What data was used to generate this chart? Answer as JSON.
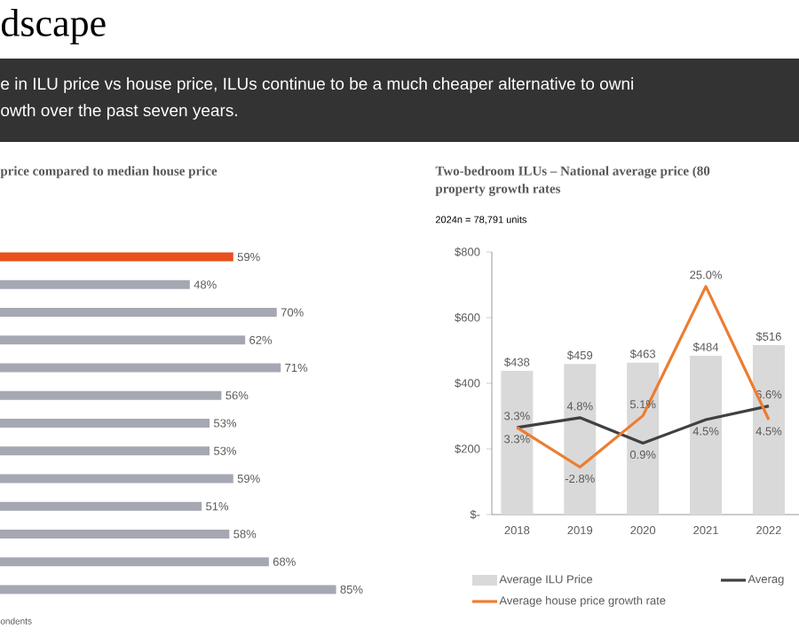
{
  "chart_data": [
    {
      "type": "other",
      "title": "dscape",
      "annotations": [
        "e in ILU price vs house price, ILUs continue to be a much cheaper alternative to owni",
        "owth over the past seven years."
      ]
    },
    {
      "type": "bar",
      "orientation": "horizontal",
      "title": "price compared to median house price",
      "categories": [
        null,
        null,
        null,
        null,
        null,
        null,
        null,
        null,
        null,
        null,
        null,
        null,
        null
      ],
      "values": [
        59,
        48,
        70,
        62,
        71,
        56,
        53,
        53,
        59,
        51,
        58,
        68,
        85
      ],
      "colors": [
        "#e8501e",
        "#a5a8b3",
        "#a5a8b3",
        "#a5a8b3",
        "#a5a8b3",
        "#a5a8b3",
        "#a5a8b3",
        "#a5a8b3",
        "#a5a8b3",
        "#a5a8b3",
        "#a5a8b3",
        "#a5a8b3",
        "#a5a8b3"
      ],
      "value_labels": [
        "59%",
        "48%",
        "70%",
        "62%",
        "71%",
        "56%",
        "53%",
        "53%",
        "59%",
        "51%",
        "58%",
        "68%",
        "85%"
      ],
      "tick_labels": false,
      "annotations": [
        "ondents"
      ]
    },
    {
      "type": "bar",
      "title": "Two-bedroom ILUs – National average price (80",
      "subtitle": "property growth rates",
      "annotations": [
        "2024n = 78,791 units"
      ],
      "categories": [
        "2018",
        "2019",
        "2020",
        "2021",
        "2022"
      ],
      "ylim": [
        0,
        800
      ],
      "yticks": [
        {
          "value": 0,
          "label": "$-"
        },
        {
          "value": 200,
          "label": "$200"
        },
        {
          "value": 400,
          "label": "$400"
        },
        {
          "value": 600,
          "label": "$600"
        },
        {
          "value": 800,
          "label": "$800"
        }
      ],
      "y2lim": [
        -10.1,
        30.3
      ],
      "legend": "bottom",
      "series": [
        {
          "name": "Average ILU Price",
          "type": "bar",
          "color": "#d9d9d9",
          "values": [
            438,
            459,
            463,
            484,
            516
          ],
          "value_labels": [
            "$438",
            "$459",
            "$463",
            "$484",
            "$516"
          ]
        },
        {
          "name": "Averag",
          "type": "line",
          "axis": "y2",
          "color": "#404040",
          "values": [
            3.3,
            4.8,
            0.9,
            4.5,
            6.6
          ],
          "value_labels": [
            "3.3%",
            "4.8%",
            "0.9%",
            "4.5%",
            "6.6%"
          ]
        },
        {
          "name": "Average house price growth rate",
          "type": "line",
          "axis": "y2",
          "color": "#ed7d31",
          "values": [
            3.3,
            -2.8,
            5.1,
            25.0,
            4.5
          ],
          "value_labels": [
            "3.3%",
            "-2.8%",
            "5.1%",
            "25.0%",
            "4.5%"
          ]
        }
      ]
    }
  ]
}
